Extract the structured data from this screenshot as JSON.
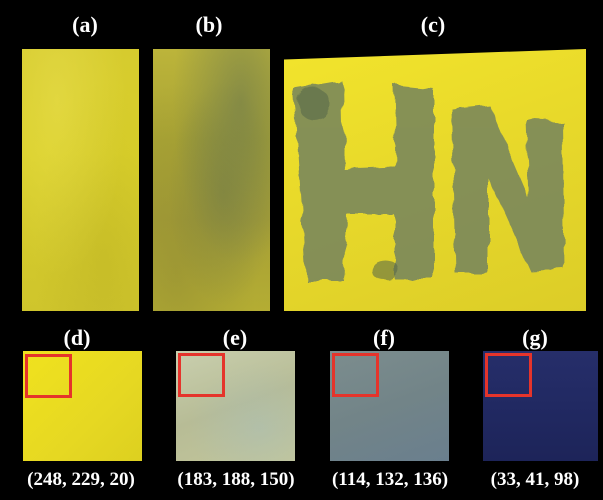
{
  "labels": {
    "a": "(a)",
    "b": "(b)",
    "c": "(c)",
    "d": "(d)",
    "e": "(e)",
    "f": "(f)",
    "g": "(g)"
  },
  "panel_c": {
    "letters": "HN"
  },
  "rgb": {
    "d": "(248, 229, 20)",
    "e": "(183, 188, 150)",
    "f": "(114, 132, 136)",
    "g": "(33, 41, 98)"
  },
  "colors": {
    "background": "#000000",
    "yellow_film": "#d9cf2a",
    "stained_film": "#a9a434",
    "stain_gray": "#7d8a5a",
    "swatch_d": "#f8e514",
    "swatch_e": "#b7bc96",
    "swatch_f": "#728488",
    "swatch_g": "#212962",
    "highlight_box": "#e5342b"
  }
}
